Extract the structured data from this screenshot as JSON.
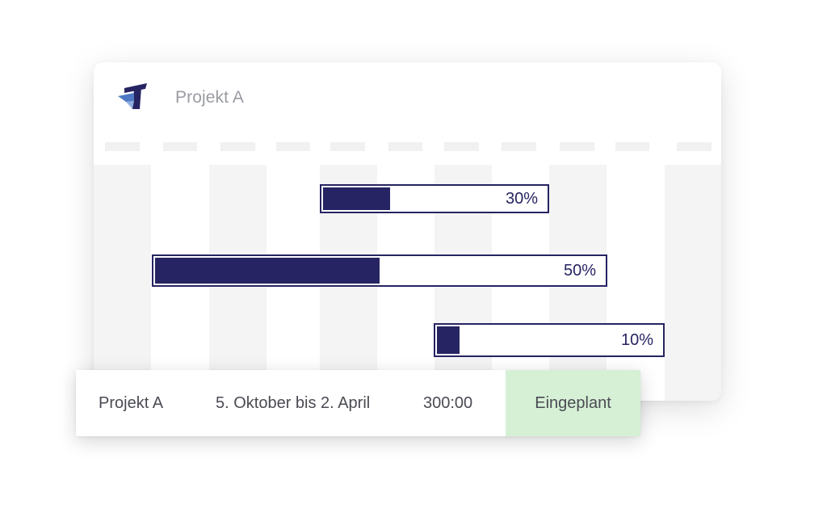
{
  "header": {
    "logo_icon": "app-logo-icon",
    "project_title": "Projekt A"
  },
  "gantt": {
    "bars": [
      {
        "progress": 0.3,
        "label": "30%"
      },
      {
        "progress": 0.5,
        "label": "50%"
      },
      {
        "progress": 0.1,
        "label": "10%"
      }
    ],
    "bar_color": "#262462",
    "column_color": "#f4f4f5"
  },
  "row": {
    "project": "Projekt A",
    "period": "5. Oktober bis 2. April",
    "hours": "300:00",
    "status": "Eingeplant",
    "status_color": "#d6f0d5"
  }
}
